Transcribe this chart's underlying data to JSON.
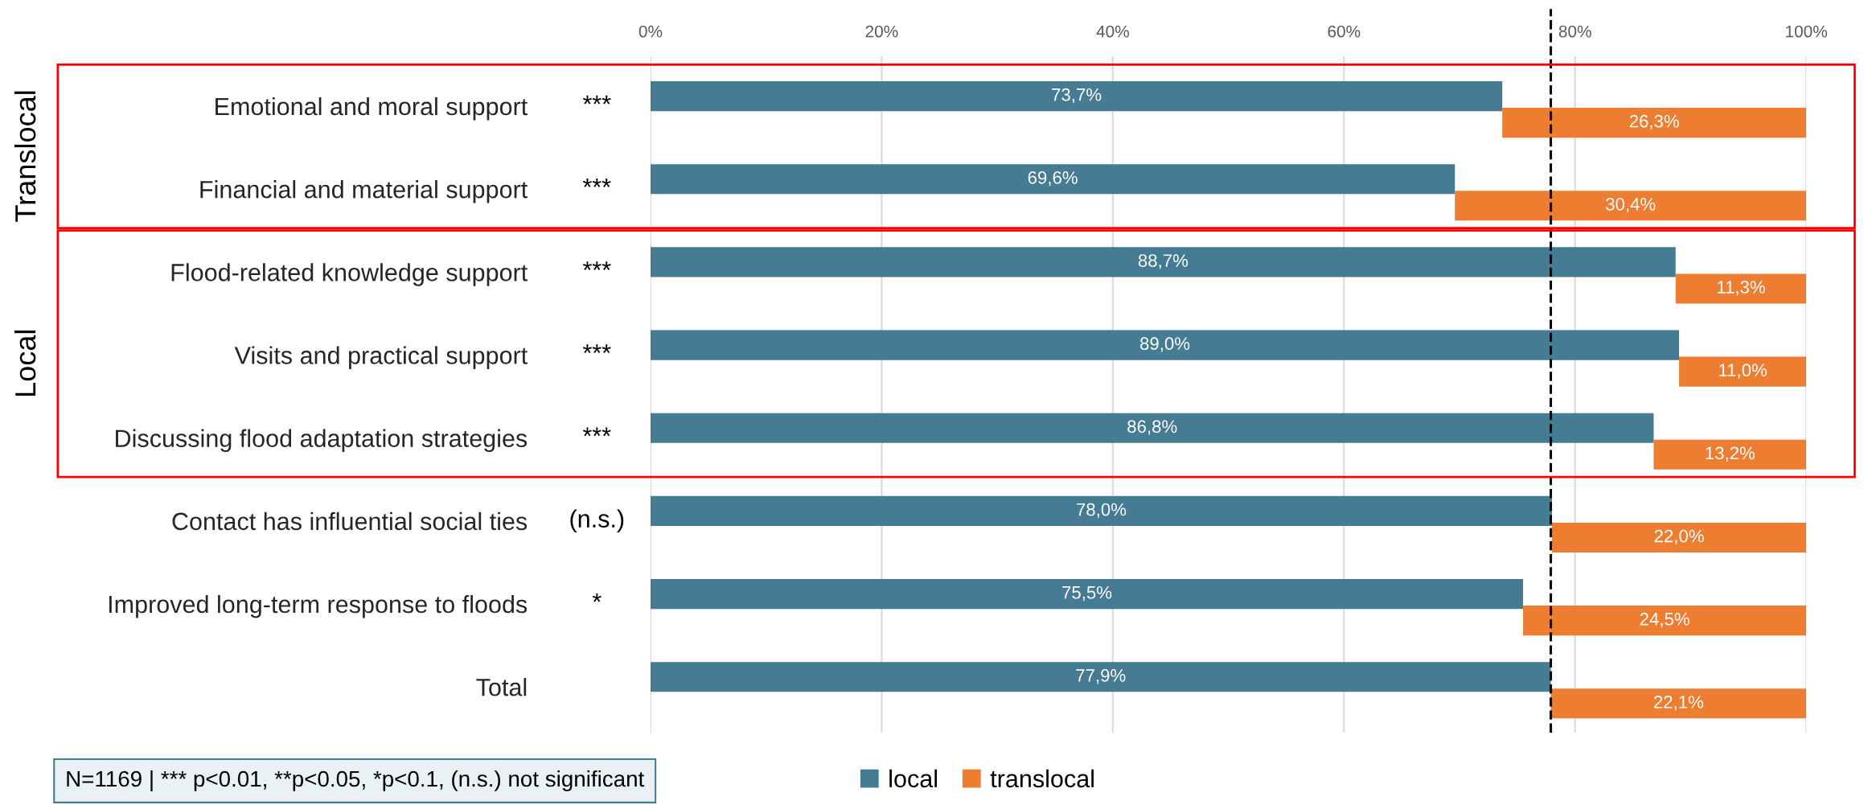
{
  "chart_data": {
    "type": "bar",
    "orientation": "horizontal",
    "stacked": true,
    "categories": [
      "Emotional and moral support",
      "Financial and material support",
      "Flood-related knowledge support",
      "Visits and practical support",
      "Discussing flood adaptation strategies",
      "Contact has influential social ties",
      "Improved long-term response to floods",
      "Total"
    ],
    "series": [
      {
        "name": "local",
        "color": "#457b93",
        "values": [
          73.7,
          69.6,
          88.7,
          89.0,
          86.8,
          78.0,
          75.5,
          77.9
        ],
        "value_labels": [
          "73,7%",
          "69,6%",
          "88,7%",
          "89,0%",
          "86,8%",
          "78,0%",
          "75,5%",
          "77,9%"
        ]
      },
      {
        "name": "translocal",
        "color": "#ed7d31",
        "values": [
          26.3,
          30.4,
          11.3,
          11.0,
          13.2,
          22.0,
          24.5,
          22.1
        ],
        "value_labels": [
          "26,3%",
          "30,4%",
          "11,3%",
          "11,0%",
          "13,2%",
          "22,0%",
          "24,5%",
          "22,1%"
        ]
      }
    ],
    "xlim": [
      0,
      100
    ],
    "xticks": [
      {
        "value": 0,
        "label": "0%"
      },
      {
        "value": 20,
        "label": "20%"
      },
      {
        "value": 40,
        "label": "40%"
      },
      {
        "value": 60,
        "label": "60%"
      },
      {
        "value": 80,
        "label": "80%"
      },
      {
        "value": 100,
        "label": "100%"
      }
    ],
    "grid": "x",
    "legend": "bottom",
    "ref_lines": [
      {
        "axis": "x",
        "value": 77.9,
        "color": "#000000",
        "line_style": "dashed"
      }
    ],
    "annotations": [
      "***",
      "***",
      "***",
      "***",
      "***",
      "(n.s.)",
      "*",
      "Translocal",
      "Local",
      "N=1169 | *** p<0.01, **p<0.05, *p<0.1, (n.s.) not significant"
    ]
  }
}
